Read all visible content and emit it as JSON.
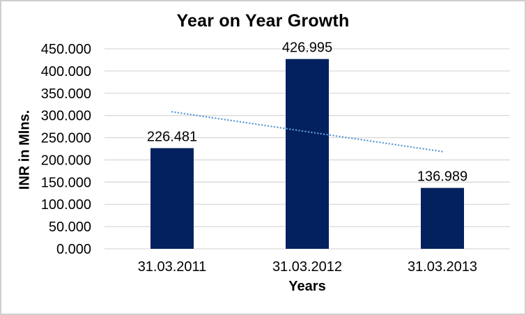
{
  "window": {
    "background": "#FFFFFF",
    "border_color": "#D0CECE"
  },
  "chart_data": {
    "type": "bar",
    "title": "Year on Year Growth",
    "xlabel": "Years",
    "ylabel": "INR in Mlns.",
    "categories": [
      "31.03.2011",
      "31.03.2012",
      "31.03.2013"
    ],
    "values": [
      226.481,
      426.995,
      136.989
    ],
    "data_labels": [
      "226.481",
      "426.995",
      "136.989"
    ],
    "ylim": [
      0,
      450
    ],
    "ytick_step": 50,
    "ytick_labels": [
      "0.000",
      "50.000",
      "100.000",
      "150.000",
      "200.000",
      "250.000",
      "300.000",
      "350.000",
      "400.000",
      "450.000"
    ],
    "grid": true,
    "legend": "none",
    "bar_color": "#02215E",
    "gridline_color": "#D9D9D9",
    "text_color": "#000000",
    "trendline": {
      "type": "linear",
      "style": "dotted",
      "color": "#5B9BD5",
      "start_value": 308.2,
      "end_value": 218.7
    }
  }
}
